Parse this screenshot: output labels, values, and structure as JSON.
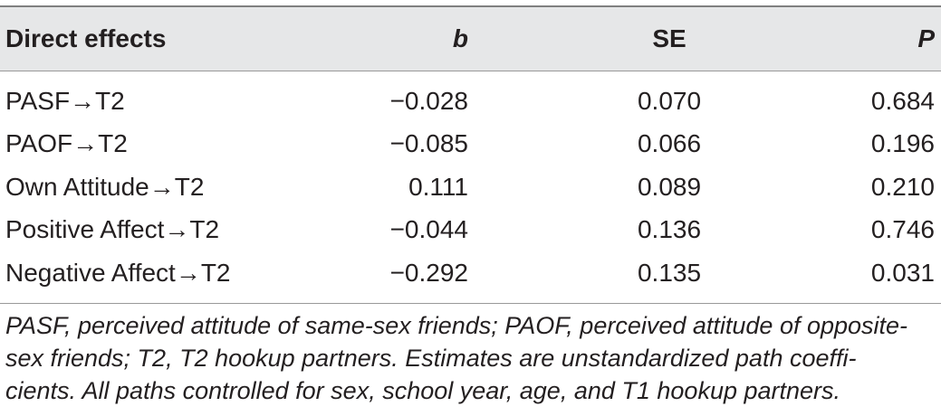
{
  "table": {
    "headers": [
      "Direct effects",
      "b",
      "SE",
      "P"
    ],
    "rows": [
      [
        "PASF→T2",
        "−0.028",
        "0.070",
        "0.684"
      ],
      [
        "PAOF→T2",
        "−0.085",
        "0.066",
        "0.196"
      ],
      [
        "Own Attitude→T2",
        "0.111",
        "0.089",
        "0.210"
      ],
      [
        "Positive Affect→T2",
        "−0.044",
        "0.136",
        "0.746"
      ],
      [
        "Negative Affect→T2",
        "−0.292",
        "0.135",
        "0.031"
      ]
    ]
  },
  "footnote": {
    "lines": [
      "PASF, perceived attitude of same-sex friends; PAOF, perceived attitude of opposite-",
      "sex friends; T2, T2 hookup partners. Estimates are unstandardized path coeffi-",
      "cients. All paths controlled for sex, school year, age, and T1 hookup partners."
    ]
  }
}
